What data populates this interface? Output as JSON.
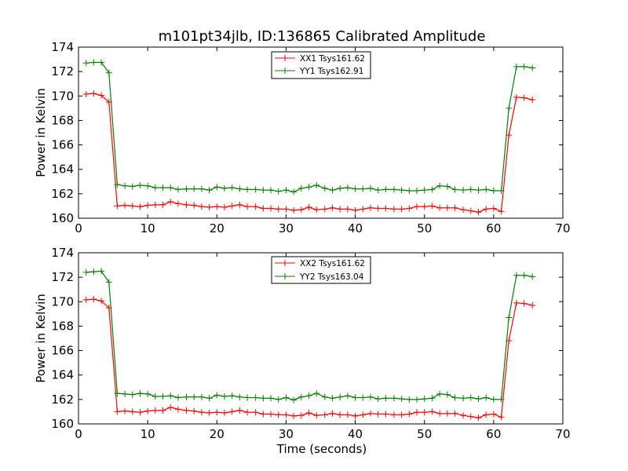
{
  "figure": {
    "title": "m101pt34jlb, ID:136865 Calibrated Amplitude",
    "xlabel": "Time (seconds)"
  },
  "colors": {
    "xx": "#ff0000",
    "yy": "#008000"
  },
  "chart_data": [
    {
      "type": "line",
      "ylabel": "Power in Kelvin",
      "xlim": [
        0,
        70
      ],
      "ylim": [
        160,
        174
      ],
      "xticks": [
        0,
        10,
        20,
        30,
        40,
        50,
        60,
        70
      ],
      "yticks": [
        160,
        162,
        164,
        166,
        168,
        170,
        172,
        174
      ],
      "legend_position": "top-center",
      "marker": "+",
      "series": [
        {
          "name": "XX1 Tsys161.62",
          "color": "#ff0000",
          "x": [
            1.1,
            2.2,
            3.3,
            4.4,
            5.6,
            6.7,
            7.8,
            8.9,
            10.0,
            11.1,
            12.2,
            13.3,
            14.4,
            15.6,
            16.7,
            17.8,
            18.9,
            20.0,
            21.1,
            22.2,
            23.3,
            24.4,
            25.6,
            26.7,
            27.8,
            28.9,
            30.0,
            31.1,
            32.2,
            33.3,
            34.4,
            35.6,
            36.7,
            37.8,
            38.9,
            40.0,
            41.1,
            42.2,
            43.3,
            44.4,
            45.6,
            46.7,
            47.8,
            48.9,
            50.0,
            51.1,
            52.2,
            53.3,
            54.4,
            55.6,
            56.7,
            57.8,
            58.9,
            60.0,
            61.1,
            62.2,
            63.3,
            64.4,
            65.6
          ],
          "values": [
            170.15,
            170.2,
            170.05,
            169.5,
            161.0,
            161.05,
            161.0,
            160.95,
            161.05,
            161.1,
            161.1,
            161.35,
            161.2,
            161.1,
            161.05,
            160.95,
            160.9,
            160.95,
            160.9,
            161.0,
            161.1,
            160.95,
            160.95,
            160.8,
            160.8,
            160.75,
            160.75,
            160.65,
            160.7,
            160.9,
            160.7,
            160.75,
            160.85,
            160.75,
            160.75,
            160.65,
            160.75,
            160.85,
            160.8,
            160.8,
            160.75,
            160.75,
            160.8,
            160.95,
            160.95,
            161.0,
            160.85,
            160.85,
            160.85,
            160.7,
            160.6,
            160.5,
            160.75,
            160.8,
            160.55,
            166.8,
            169.9,
            169.85,
            169.7
          ]
        },
        {
          "name": "YY1 Tsys162.91",
          "color": "#008000",
          "x": [
            1.1,
            2.2,
            3.3,
            4.4,
            5.6,
            6.7,
            7.8,
            8.9,
            10.0,
            11.1,
            12.2,
            13.3,
            14.4,
            15.6,
            16.7,
            17.8,
            18.9,
            20.0,
            21.1,
            22.2,
            23.3,
            24.4,
            25.6,
            26.7,
            27.8,
            28.9,
            30.0,
            31.1,
            32.2,
            33.3,
            34.4,
            35.6,
            36.7,
            37.8,
            38.9,
            40.0,
            41.1,
            42.2,
            43.3,
            44.4,
            45.6,
            46.7,
            47.8,
            48.9,
            50.0,
            51.1,
            52.2,
            53.3,
            54.4,
            55.6,
            56.7,
            57.8,
            58.9,
            60.0,
            61.1,
            62.2,
            63.3,
            64.4,
            65.6
          ],
          "values": [
            172.7,
            172.75,
            172.75,
            171.9,
            162.75,
            162.65,
            162.6,
            162.7,
            162.65,
            162.5,
            162.5,
            162.5,
            162.35,
            162.4,
            162.4,
            162.4,
            162.3,
            162.55,
            162.45,
            162.5,
            162.4,
            162.35,
            162.35,
            162.3,
            162.3,
            162.2,
            162.3,
            162.15,
            162.45,
            162.55,
            162.7,
            162.45,
            162.3,
            162.45,
            162.5,
            162.4,
            162.4,
            162.45,
            162.3,
            162.35,
            162.35,
            162.3,
            162.25,
            162.25,
            162.3,
            162.35,
            162.65,
            162.6,
            162.35,
            162.3,
            162.35,
            162.3,
            162.35,
            162.25,
            162.25,
            169.0,
            172.4,
            172.4,
            172.3
          ]
        }
      ]
    },
    {
      "type": "line",
      "ylabel": "Power in Kelvin",
      "xlabel": "Time (seconds)",
      "xlim": [
        0,
        70
      ],
      "ylim": [
        160,
        174
      ],
      "xticks": [
        0,
        10,
        20,
        30,
        40,
        50,
        60,
        70
      ],
      "yticks": [
        160,
        162,
        164,
        166,
        168,
        170,
        172,
        174
      ],
      "legend_position": "top-center",
      "marker": "+",
      "series": [
        {
          "name": "XX2 Tsys161.62",
          "color": "#ff0000",
          "x": [
            1.1,
            2.2,
            3.3,
            4.4,
            5.6,
            6.7,
            7.8,
            8.9,
            10.0,
            11.1,
            12.2,
            13.3,
            14.4,
            15.6,
            16.7,
            17.8,
            18.9,
            20.0,
            21.1,
            22.2,
            23.3,
            24.4,
            25.6,
            26.7,
            27.8,
            28.9,
            30.0,
            31.1,
            32.2,
            33.3,
            34.4,
            35.6,
            36.7,
            37.8,
            38.9,
            40.0,
            41.1,
            42.2,
            43.3,
            44.4,
            45.6,
            46.7,
            47.8,
            48.9,
            50.0,
            51.1,
            52.2,
            53.3,
            54.4,
            55.6,
            56.7,
            57.8,
            58.9,
            60.0,
            61.1,
            62.2,
            63.3,
            64.4,
            65.6
          ],
          "values": [
            170.15,
            170.2,
            170.05,
            169.5,
            161.0,
            161.05,
            161.0,
            160.95,
            161.05,
            161.1,
            161.1,
            161.35,
            161.2,
            161.1,
            161.05,
            160.95,
            160.9,
            160.95,
            160.9,
            161.0,
            161.1,
            160.95,
            160.95,
            160.8,
            160.8,
            160.75,
            160.75,
            160.65,
            160.7,
            160.9,
            160.7,
            160.75,
            160.85,
            160.75,
            160.75,
            160.65,
            160.75,
            160.85,
            160.8,
            160.8,
            160.75,
            160.75,
            160.8,
            160.95,
            160.95,
            161.0,
            160.85,
            160.85,
            160.85,
            160.7,
            160.6,
            160.5,
            160.75,
            160.8,
            160.55,
            166.8,
            169.9,
            169.85,
            169.7
          ]
        },
        {
          "name": "YY2 Tsys163.04",
          "color": "#008000",
          "x": [
            1.1,
            2.2,
            3.3,
            4.4,
            5.6,
            6.7,
            7.8,
            8.9,
            10.0,
            11.1,
            12.2,
            13.3,
            14.4,
            15.6,
            16.7,
            17.8,
            18.9,
            20.0,
            21.1,
            22.2,
            23.3,
            24.4,
            25.6,
            26.7,
            27.8,
            28.9,
            30.0,
            31.1,
            32.2,
            33.3,
            34.4,
            35.6,
            36.7,
            37.8,
            38.9,
            40.0,
            41.1,
            42.2,
            43.3,
            44.4,
            45.6,
            46.7,
            47.8,
            48.9,
            50.0,
            51.1,
            52.2,
            53.3,
            54.4,
            55.6,
            56.7,
            57.8,
            58.9,
            60.0,
            61.1,
            62.2,
            63.3,
            64.4,
            65.6
          ],
          "values": [
            172.4,
            172.45,
            172.5,
            171.6,
            162.5,
            162.45,
            162.4,
            162.5,
            162.45,
            162.25,
            162.25,
            162.3,
            162.15,
            162.2,
            162.2,
            162.2,
            162.1,
            162.35,
            162.25,
            162.3,
            162.2,
            162.15,
            162.15,
            162.1,
            162.1,
            162.0,
            162.15,
            161.95,
            162.2,
            162.3,
            162.5,
            162.2,
            162.1,
            162.2,
            162.3,
            162.15,
            162.15,
            162.2,
            162.05,
            162.1,
            162.1,
            162.05,
            162.0,
            162.0,
            162.05,
            162.1,
            162.45,
            162.4,
            162.15,
            162.1,
            162.15,
            162.05,
            162.15,
            162.0,
            162.0,
            168.7,
            172.15,
            172.15,
            172.05
          ]
        }
      ]
    }
  ]
}
